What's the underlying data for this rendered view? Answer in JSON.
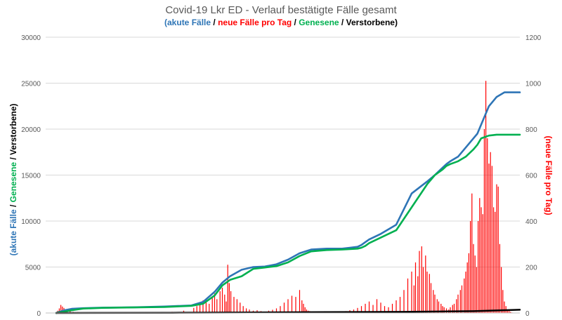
{
  "chart_data": {
    "type": "line",
    "title": "Covid-19 Lkr ED - Verlauf bestätigte Fälle gesamt",
    "subtitle_parts": [
      {
        "text": "(akute Fälle",
        "color": "#2e75b6"
      },
      {
        "text": " / ",
        "color": "#000000"
      },
      {
        "text": "neue Fälle pro Tag",
        "color": "#ff0000"
      },
      {
        "text": " / ",
        "color": "#000000"
      },
      {
        "text": "Genesene",
        "color": "#00b050"
      },
      {
        "text": " / ",
        "color": "#000000"
      },
      {
        "text": "Verstorbene)",
        "color": "#000000"
      }
    ],
    "ylabel_left_parts": [
      {
        "text": "(akute Fälle",
        "color": "#2e75b6"
      },
      {
        "text": " / ",
        "color": "#000000"
      },
      {
        "text": "Genesene",
        "color": "#00b050"
      },
      {
        "text": " / ",
        "color": "#000000"
      },
      {
        "text": "Verstorbene)",
        "color": "#000000"
      }
    ],
    "ylabel_right": "(neue Fälle pro Tag)",
    "ylim_left": [
      0,
      30000
    ],
    "ylim_right": [
      0,
      1200
    ],
    "yticks_left": [
      "0",
      "5000",
      "10000",
      "15000",
      "20000",
      "25000",
      "30000"
    ],
    "yticks_right": [
      "0",
      "200",
      "400",
      "600",
      "800",
      "1000",
      "1200"
    ],
    "grid": true,
    "x_index_range": [
      0,
      600
    ],
    "series": [
      {
        "key": "akute",
        "axis": "left",
        "color": "#2e75b6",
        "x": [
          0,
          10,
          20,
          35,
          60,
          100,
          140,
          175,
          190,
          205,
          215,
          225,
          240,
          255,
          270,
          285,
          300,
          315,
          330,
          350,
          370,
          380,
          390,
          395,
          400,
          405,
          410,
          420,
          440,
          460,
          480,
          490,
          500,
          505,
          510,
          520,
          530,
          540,
          545,
          550,
          560,
          570,
          580,
          590,
          600
        ],
        "values": [
          0,
          280,
          450,
          520,
          580,
          620,
          700,
          820,
          1200,
          2300,
          3300,
          4000,
          4700,
          5000,
          5050,
          5300,
          5800,
          6500,
          6900,
          7000,
          7000,
          7100,
          7200,
          7400,
          7700,
          8000,
          8200,
          8600,
          9600,
          13000,
          14300,
          15000,
          15800,
          16200,
          16500,
          17000,
          18000,
          19000,
          19500,
          20500,
          22500,
          23500,
          24000,
          24000,
          24000
        ]
      },
      {
        "key": "genesene",
        "axis": "left",
        "color": "#00b050",
        "x": [
          0,
          20,
          35,
          60,
          100,
          140,
          175,
          190,
          205,
          215,
          225,
          240,
          255,
          270,
          285,
          300,
          315,
          330,
          350,
          370,
          380,
          390,
          395,
          400,
          405,
          410,
          420,
          440,
          460,
          480,
          490,
          500,
          505,
          510,
          520,
          530,
          540,
          545,
          550,
          560,
          570,
          580,
          590,
          600
        ],
        "values": [
          0,
          300,
          480,
          560,
          600,
          650,
          780,
          1000,
          1900,
          3000,
          3600,
          4000,
          4800,
          4950,
          5100,
          5500,
          6200,
          6700,
          6850,
          6900,
          6950,
          7000,
          7100,
          7300,
          7600,
          7800,
          8200,
          9000,
          11500,
          14000,
          15000,
          15600,
          16000,
          16200,
          16500,
          17000,
          17800,
          18300,
          19000,
          19300,
          19400,
          19400,
          19400,
          19400
        ]
      },
      {
        "key": "verstorbene",
        "axis": "left",
        "color": "#000000",
        "x": [
          0,
          150,
          250,
          350,
          450,
          540,
          600
        ],
        "values": [
          0,
          20,
          60,
          90,
          120,
          200,
          350
        ]
      }
    ],
    "bars": {
      "key": "neue_faelle",
      "axis": "right",
      "color": "#ff0000",
      "x": [
        2,
        4,
        6,
        8,
        10,
        12,
        14,
        18,
        22,
        28,
        35,
        48,
        60,
        75,
        90,
        110,
        130,
        150,
        165,
        178,
        182,
        186,
        190,
        194,
        198,
        202,
        205,
        208,
        212,
        215,
        218,
        220,
        222,
        224,
        226,
        230,
        234,
        238,
        242,
        246,
        250,
        255,
        260,
        265,
        270,
        275,
        280,
        285,
        290,
        295,
        300,
        305,
        310,
        315,
        318,
        320,
        322,
        324,
        326,
        328,
        330,
        332,
        335,
        340,
        345,
        350,
        355,
        360,
        365,
        370,
        375,
        380,
        385,
        390,
        395,
        400,
        405,
        410,
        415,
        420,
        425,
        430,
        435,
        440,
        445,
        450,
        455,
        460,
        463,
        465,
        468,
        470,
        473,
        475,
        478,
        480,
        483,
        485,
        488,
        490,
        493,
        495,
        498,
        500,
        502,
        505,
        508,
        510,
        513,
        515,
        518,
        520,
        523,
        525,
        528,
        530,
        532,
        534,
        536,
        538,
        540,
        542,
        544,
        546,
        548,
        550,
        552,
        554,
        556,
        558,
        560,
        562,
        564,
        566,
        568,
        570,
        572,
        574,
        576,
        578,
        580,
        582,
        584,
        586,
        588,
        590,
        592,
        594,
        596,
        598
      ],
      "values": [
        10,
        20,
        35,
        28,
        22,
        15,
        10,
        8,
        5,
        4,
        3,
        2,
        2,
        2,
        1,
        2,
        3,
        5,
        10,
        22,
        30,
        45,
        55,
        60,
        40,
        70,
        85,
        60,
        95,
        110,
        80,
        50,
        210,
        130,
        95,
        70,
        60,
        45,
        30,
        20,
        15,
        10,
        12,
        8,
        6,
        10,
        14,
        20,
        30,
        45,
        60,
        75,
        70,
        100,
        55,
        40,
        25,
        15,
        10,
        8,
        6,
        5,
        4,
        3,
        3,
        2,
        2,
        3,
        4,
        5,
        8,
        12,
        15,
        22,
        30,
        40,
        50,
        35,
        60,
        45,
        30,
        25,
        40,
        55,
        70,
        100,
        150,
        180,
        120,
        220,
        160,
        270,
        290,
        200,
        250,
        180,
        170,
        130,
        100,
        80,
        60,
        50,
        40,
        30,
        25,
        20,
        15,
        25,
        35,
        40,
        60,
        80,
        100,
        120,
        150,
        180,
        220,
        260,
        400,
        520,
        300,
        250,
        200,
        400,
        500,
        460,
        430,
        800,
        1010,
        760,
        650,
        700,
        640,
        460,
        440,
        560,
        550,
        300,
        200,
        100,
        50,
        30,
        15,
        10,
        5,
        2,
        1,
        0,
        0,
        0
      ]
    }
  }
}
